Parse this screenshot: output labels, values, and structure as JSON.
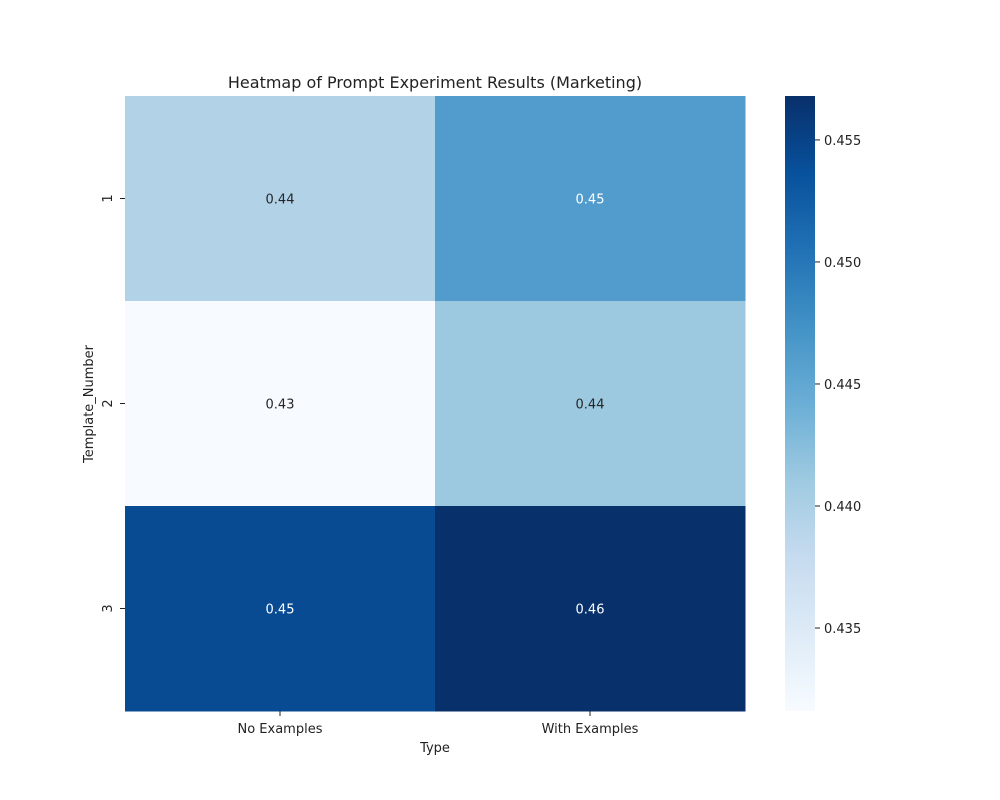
{
  "chart_data": {
    "type": "heatmap",
    "title": "Heatmap of Prompt Experiment Results (Marketing)",
    "xlabel": "Type",
    "ylabel": "Template_Number",
    "x_categories": [
      "No Examples",
      "With Examples"
    ],
    "y_categories": [
      "1",
      "2",
      "3"
    ],
    "values": [
      [
        0.4395,
        0.4462
      ],
      [
        0.4316,
        0.4412
      ],
      [
        0.4542,
        0.4568
      ]
    ],
    "cell_labels": [
      [
        "0.44",
        "0.45"
      ],
      [
        "0.43",
        "0.44"
      ],
      [
        "0.45",
        "0.46"
      ]
    ],
    "colormap": "Blues",
    "colorbar": {
      "min": 0.4316,
      "max": 0.4568,
      "ticks": [
        0.435,
        0.44,
        0.445,
        0.45,
        0.455
      ],
      "tick_labels": [
        "0.435",
        "0.440",
        "0.445",
        "0.450",
        "0.455"
      ]
    }
  }
}
